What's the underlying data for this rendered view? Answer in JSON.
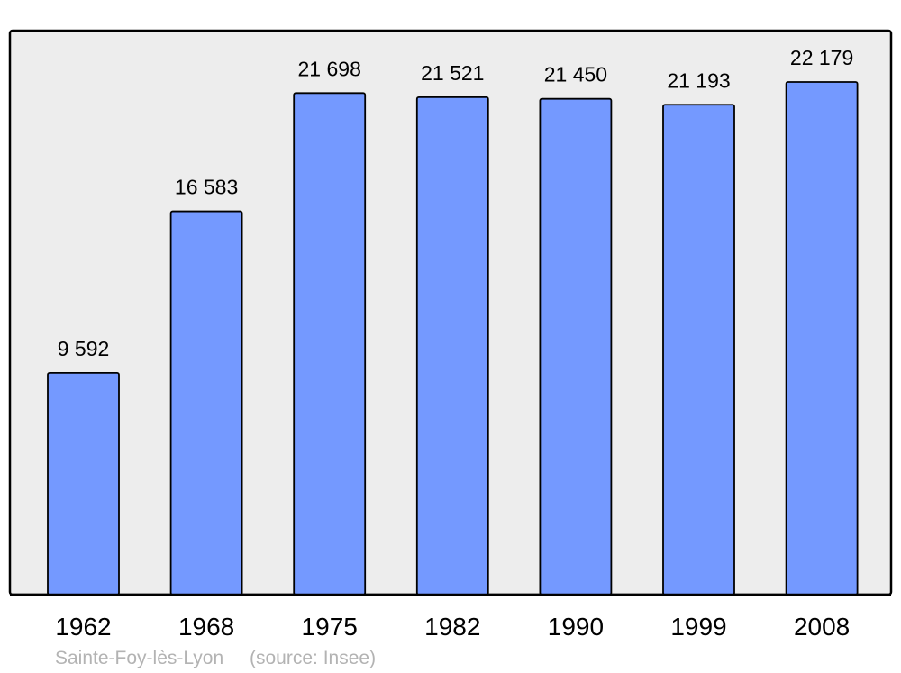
{
  "chart_data": {
    "type": "bar",
    "categories": [
      "1962",
      "1968",
      "1975",
      "1982",
      "1990",
      "1999",
      "2008"
    ],
    "values": [
      9592,
      16583,
      21698,
      21521,
      21450,
      21193,
      22179
    ],
    "value_labels": [
      "9 592",
      "16 583",
      "21 698",
      "21 521",
      "21 450",
      "21 193",
      "22 179"
    ],
    "title": "",
    "xlabel": "",
    "ylabel": "",
    "ylim": [
      0,
      24400
    ],
    "grid": false,
    "colors": {
      "bar": "#7499ff",
      "background": "#ededed",
      "border": "#000000",
      "footer": "#b3b3b3"
    }
  },
  "footer": {
    "place": "Sainte-Foy-lès-Lyon",
    "source": "(source: Insee)"
  }
}
